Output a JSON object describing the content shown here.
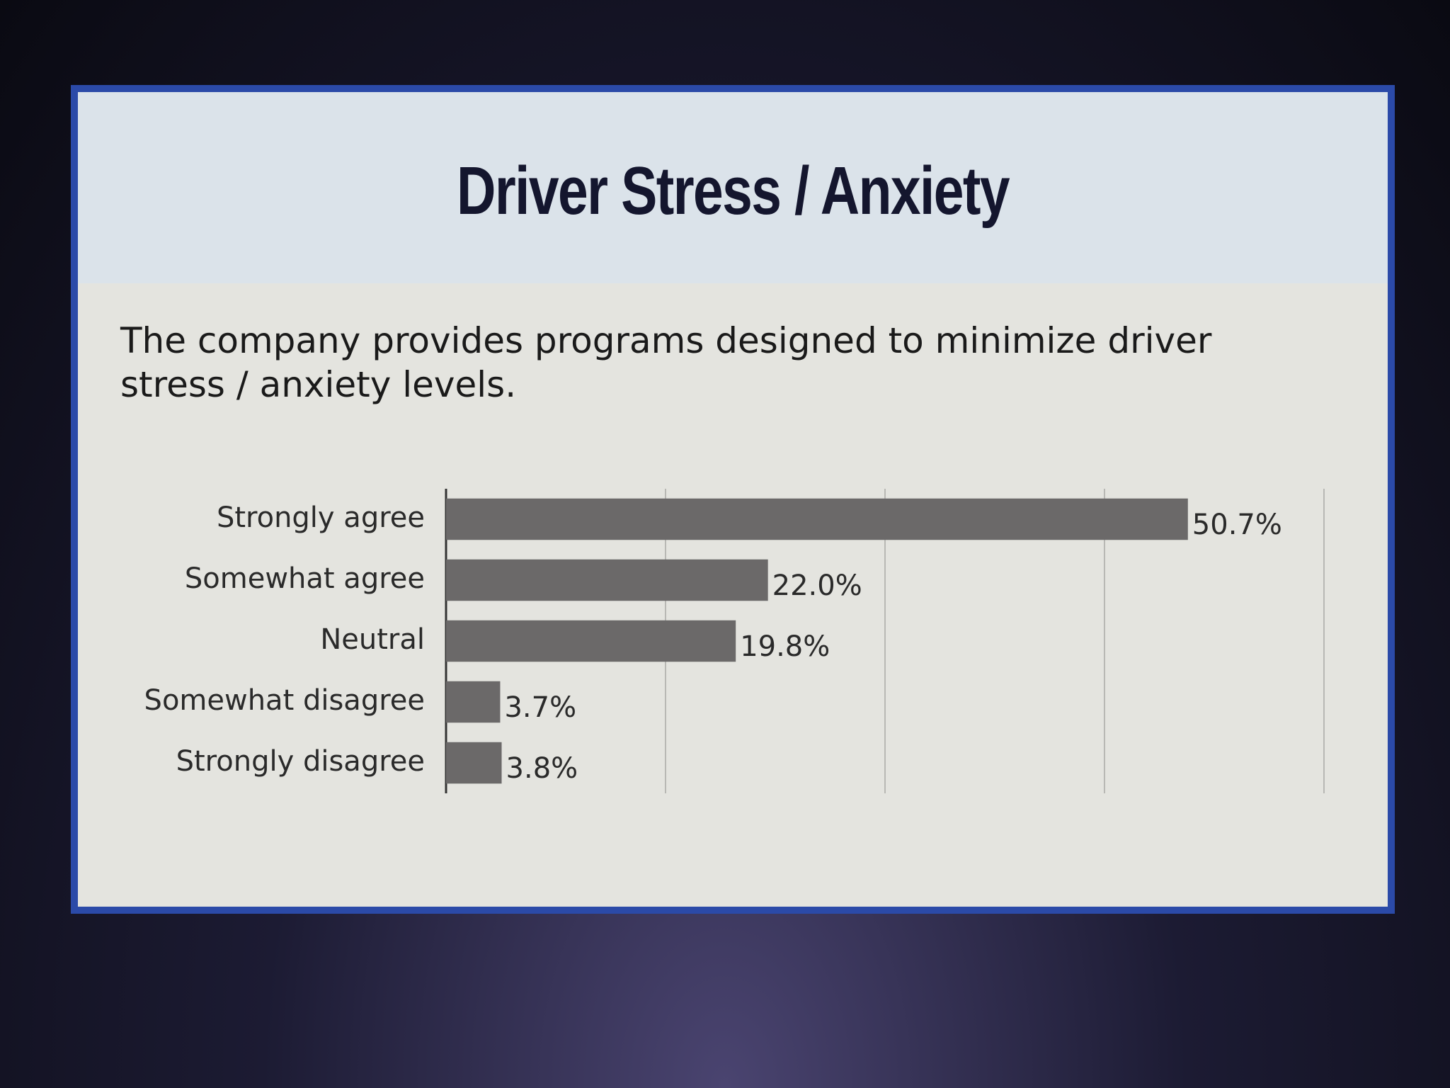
{
  "chart_data": {
    "type": "bar",
    "orientation": "horizontal",
    "title": "Driver Stress / Anxiety",
    "subtitle": "The company provides programs designed to minimize driver stress / anxiety levels.",
    "categories": [
      "Strongly agree",
      "Somewhat agree",
      "Neutral",
      "Somewhat disagree",
      "Strongly disagree"
    ],
    "values": [
      50.7,
      22.0,
      19.8,
      3.7,
      3.8
    ],
    "value_labels": [
      "50.7%",
      "22.0%",
      "19.8%",
      "3.7%",
      "3.8%"
    ],
    "color": "#6b6969",
    "xlim": [
      0,
      60
    ],
    "xticks": [
      0,
      15,
      30,
      45,
      60
    ],
    "grid": true
  }
}
